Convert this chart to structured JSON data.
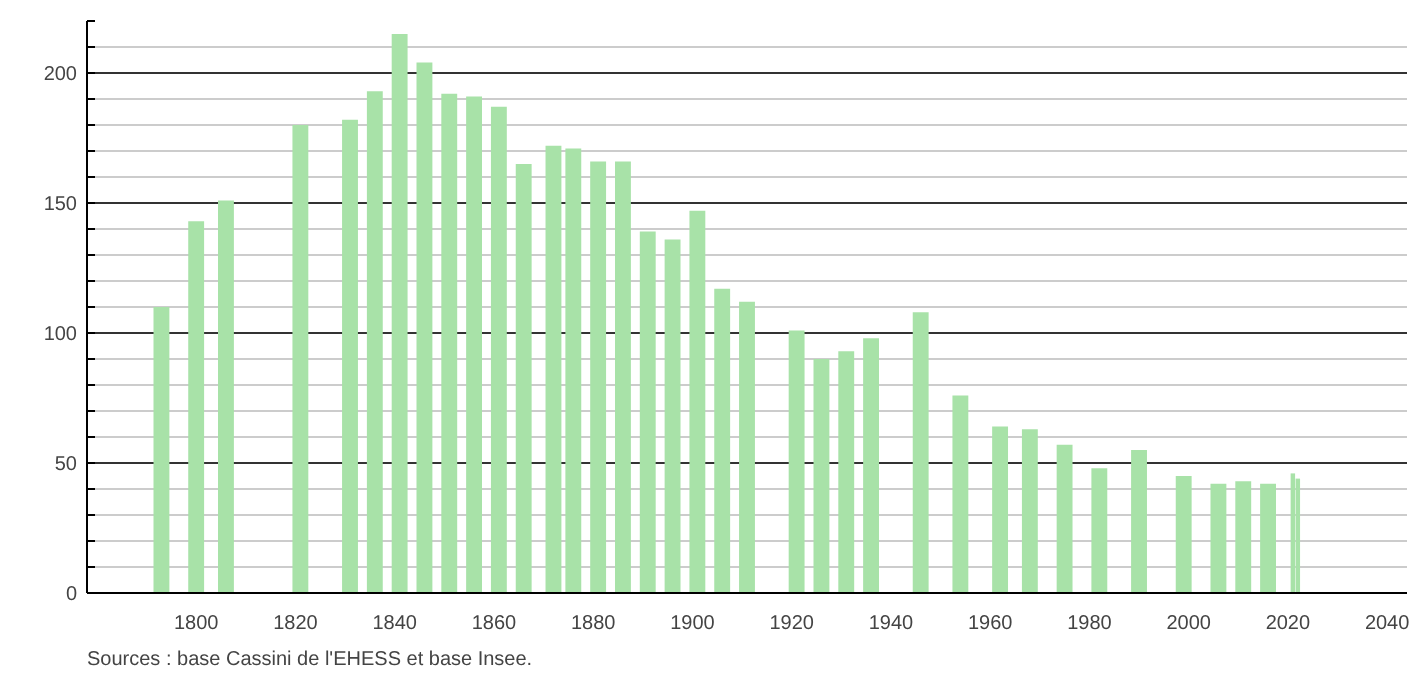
{
  "chart_data": {
    "type": "bar",
    "x": [
      1793,
      1800,
      1806,
      1821,
      1831,
      1836,
      1841,
      1846,
      1851,
      1856,
      1861,
      1866,
      1872,
      1876,
      1881,
      1886,
      1891,
      1896,
      1901,
      1906,
      1911,
      1921,
      1926,
      1931,
      1936,
      1946,
      1954,
      1962,
      1968,
      1975,
      1982,
      1990,
      1999,
      2006,
      2011,
      2016,
      2021,
      2022
    ],
    "values": [
      110,
      143,
      151,
      180,
      182,
      193,
      215,
      204,
      192,
      191,
      187,
      165,
      172,
      171,
      166,
      166,
      139,
      136,
      147,
      117,
      112,
      101,
      90,
      93,
      98,
      108,
      76,
      64,
      63,
      57,
      48,
      55,
      45,
      42,
      43,
      42,
      46,
      44
    ],
    "color": "#a8e2a8",
    "xlim": [
      1778,
      2044
    ],
    "xticks": [
      1800,
      1820,
      1840,
      1860,
      1880,
      1900,
      1920,
      1940,
      1960,
      1980,
      2000,
      2020,
      2040
    ],
    "ylim": [
      0,
      220
    ],
    "yticks": [
      0,
      {
        "value": 10,
        "label": null
      },
      {
        "value": 20,
        "label": null
      },
      {
        "value": 30,
        "label": null
      },
      {
        "value": 40,
        "label": null
      },
      50,
      {
        "value": 60,
        "label": null
      },
      {
        "value": 70,
        "label": null
      },
      {
        "value": 80,
        "label": null
      },
      {
        "value": 90,
        "label": null
      },
      100,
      {
        "value": 110,
        "label": null
      },
      {
        "value": 120,
        "label": null
      },
      {
        "value": 130,
        "label": null
      },
      {
        "value": 140,
        "label": null
      },
      150,
      {
        "value": 160,
        "label": null
      },
      {
        "value": 170,
        "label": null
      },
      {
        "value": 180,
        "label": null
      },
      {
        "value": 190,
        "label": null
      },
      200,
      {
        "value": 210,
        "label": null
      },
      {
        "value": 220,
        "label": null
      }
    ],
    "grid": "y",
    "annotations": [
      "Sources : base Cassini de l'EHESS et base Insee."
    ]
  }
}
